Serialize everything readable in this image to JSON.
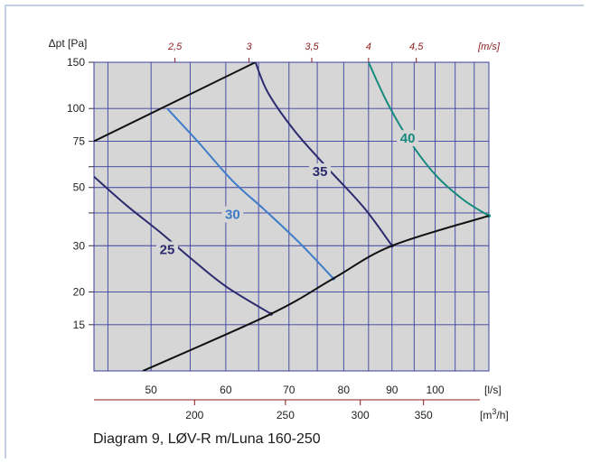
{
  "caption": "Diagram 9, LØV-R m/Luna 160-250",
  "chart_data": {
    "type": "line",
    "xaxis": {
      "scale": "log",
      "unit": "[l/s]",
      "range": [
        43.5,
        114
      ],
      "ticks": [
        50,
        60,
        70,
        80,
        90,
        100
      ],
      "minor_ticks": [
        45,
        55,
        65,
        75,
        85,
        95,
        105,
        110
      ]
    },
    "yaxis": {
      "scale": "log",
      "label": "Δpt [Pa]",
      "range": [
        10,
        150
      ],
      "ticks": [
        15,
        20,
        30,
        50,
        75,
        100,
        150
      ],
      "minor_ticks": [
        40,
        60
      ]
    },
    "secondary_top": {
      "unit": "[m/s]",
      "ticks": [
        {
          "label": "2,5",
          "x": 53.0
        },
        {
          "label": "3",
          "x": 63.5
        },
        {
          "label": "3,5",
          "x": 74.0
        },
        {
          "label": "4",
          "x": 85.0
        },
        {
          "label": "4,5",
          "x": 95.5
        }
      ]
    },
    "secondary_bottom": {
      "unit": "[m3/h]",
      "ticks": [
        {
          "label": "200",
          "x": 55.6
        },
        {
          "label": "250",
          "x": 69.4
        },
        {
          "label": "300",
          "x": 83.3
        },
        {
          "label": "350",
          "x": 97.2
        }
      ]
    },
    "grid": true,
    "series": [
      {
        "name": "25",
        "points": [
          [
            43.5,
            55
          ],
          [
            47,
            43
          ],
          [
            51,
            34
          ],
          [
            55,
            27
          ],
          [
            60,
            21
          ],
          [
            67,
            16.5
          ]
        ]
      },
      {
        "name": "30",
        "points": [
          [
            52,
            100
          ],
          [
            56,
            75
          ],
          [
            61,
            53
          ],
          [
            66,
            41
          ],
          [
            72,
            30.5
          ],
          [
            78,
            22.5
          ]
        ]
      },
      {
        "name": "35",
        "points": [
          [
            64.5,
            150
          ],
          [
            66.5,
            115
          ],
          [
            71,
            82
          ],
          [
            77,
            59
          ],
          [
            84,
            42
          ],
          [
            90,
            30
          ]
        ]
      },
      {
        "name": "40",
        "points": [
          [
            85,
            150
          ],
          [
            89,
            105
          ],
          [
            94,
            75
          ],
          [
            100,
            56
          ],
          [
            107,
            45
          ],
          [
            114,
            39
          ]
        ]
      },
      {
        "name": "",
        "points": [
          [
            43.5,
            75
          ],
          [
            64.5,
            150
          ]
        ]
      },
      {
        "name": "",
        "points": [
          [
            49,
            10
          ],
          [
            67,
            16.5
          ],
          [
            78,
            22.5
          ],
          [
            90,
            30
          ],
          [
            114,
            39
          ]
        ]
      }
    ],
    "colors": {
      "25": "#2c2a6e",
      "30": "#3d7cc9",
      "35": "#2c2a6e",
      "40": "#148a7f",
      "system": "#111111",
      "plot_bg": "#d6d6d6",
      "grid": "#3b3f9e",
      "secondary": "#8b1d1d"
    }
  }
}
